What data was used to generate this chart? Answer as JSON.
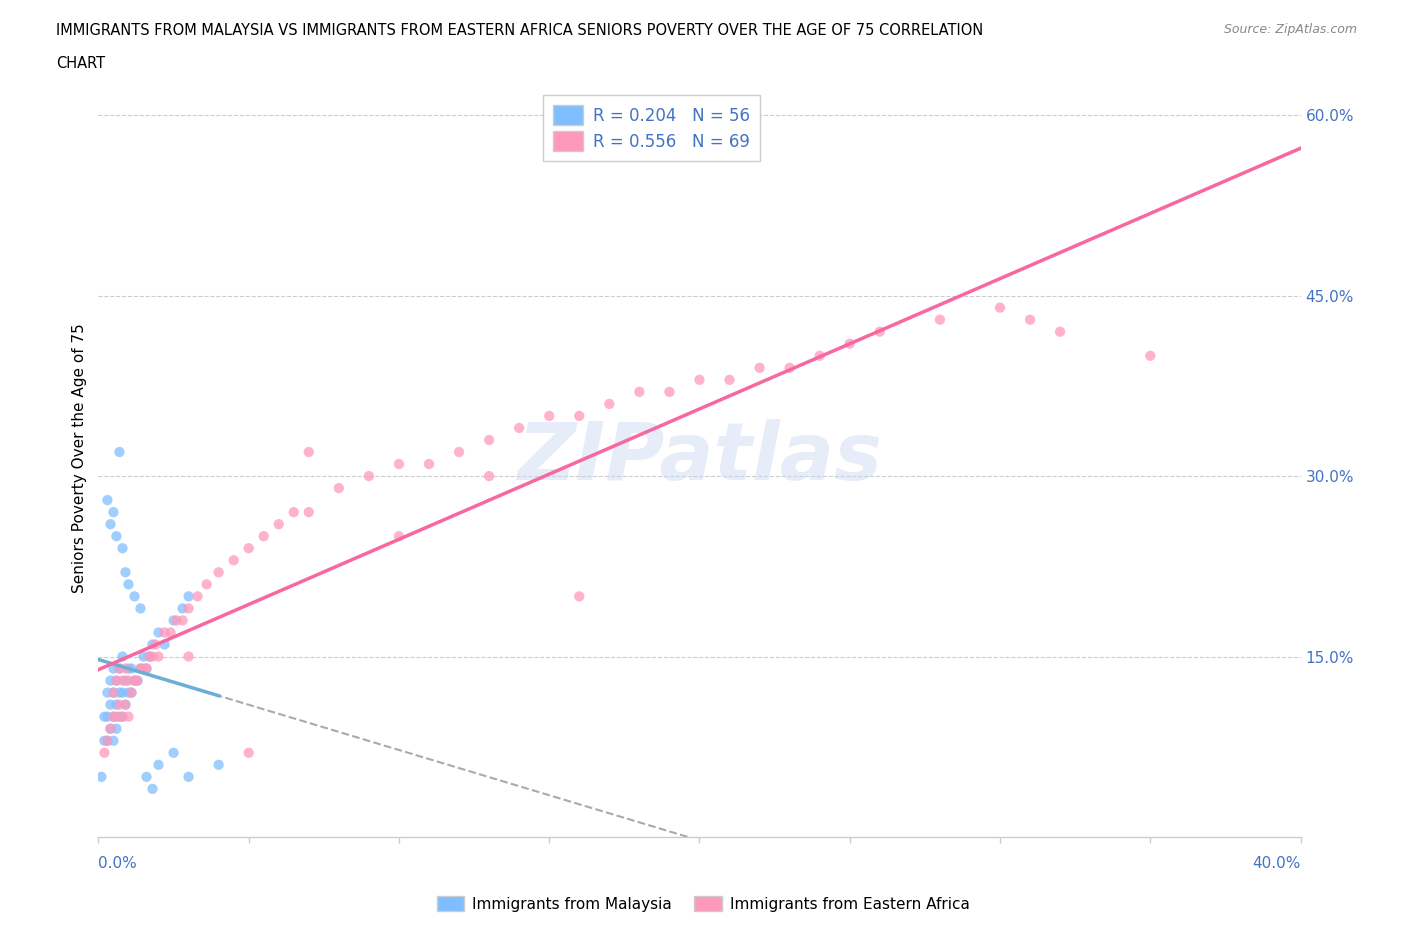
{
  "title_line1": "IMMIGRANTS FROM MALAYSIA VS IMMIGRANTS FROM EASTERN AFRICA SENIORS POVERTY OVER THE AGE OF 75 CORRELATION",
  "title_line2": "CHART",
  "source": "Source: ZipAtlas.com",
  "ylabel_label": "Seniors Poverty Over the Age of 75",
  "xlim": [
    0.0,
    0.4
  ],
  "ylim": [
    0.0,
    0.63
  ],
  "yticks": [
    0.15,
    0.3,
    0.45,
    0.6
  ],
  "ytick_labels": [
    "15.0%",
    "30.0%",
    "45.0%",
    "60.0%"
  ],
  "legend1_label": "R = 0.204   N = 56",
  "legend2_label": "R = 0.556   N = 69",
  "color_malaysia": "#80bfff",
  "color_eastern_africa": "#ff99bb",
  "color_line_malaysia": "#6baed6",
  "color_line_eastern_africa": "#f768a1",
  "color_axis_labels": "#4472c4",
  "watermark": "ZIPatlas",
  "malaysia_x": [
    0.001,
    0.002,
    0.002,
    0.003,
    0.003,
    0.003,
    0.004,
    0.004,
    0.004,
    0.005,
    0.005,
    0.005,
    0.005,
    0.006,
    0.006,
    0.006,
    0.007,
    0.007,
    0.007,
    0.008,
    0.008,
    0.008,
    0.009,
    0.009,
    0.01,
    0.01,
    0.011,
    0.011,
    0.012,
    0.013,
    0.014,
    0.015,
    0.016,
    0.017,
    0.018,
    0.02,
    0.022,
    0.025,
    0.028,
    0.03,
    0.003,
    0.004,
    0.005,
    0.006,
    0.007,
    0.008,
    0.009,
    0.01,
    0.012,
    0.014,
    0.016,
    0.018,
    0.02,
    0.025,
    0.03,
    0.04
  ],
  "malaysia_y": [
    0.05,
    0.08,
    0.1,
    0.08,
    0.1,
    0.12,
    0.09,
    0.11,
    0.13,
    0.08,
    0.1,
    0.12,
    0.14,
    0.09,
    0.11,
    0.13,
    0.1,
    0.12,
    0.14,
    0.1,
    0.12,
    0.15,
    0.11,
    0.13,
    0.12,
    0.14,
    0.12,
    0.14,
    0.13,
    0.13,
    0.14,
    0.15,
    0.14,
    0.15,
    0.16,
    0.17,
    0.16,
    0.18,
    0.19,
    0.2,
    0.28,
    0.26,
    0.27,
    0.25,
    0.32,
    0.24,
    0.22,
    0.21,
    0.2,
    0.19,
    0.05,
    0.04,
    0.06,
    0.07,
    0.05,
    0.06
  ],
  "eastern_africa_x": [
    0.002,
    0.003,
    0.004,
    0.005,
    0.005,
    0.006,
    0.006,
    0.007,
    0.007,
    0.008,
    0.008,
    0.009,
    0.009,
    0.01,
    0.01,
    0.011,
    0.012,
    0.013,
    0.014,
    0.015,
    0.016,
    0.017,
    0.018,
    0.019,
    0.02,
    0.022,
    0.024,
    0.026,
    0.028,
    0.03,
    0.033,
    0.036,
    0.04,
    0.045,
    0.05,
    0.055,
    0.06,
    0.065,
    0.07,
    0.08,
    0.09,
    0.1,
    0.11,
    0.12,
    0.13,
    0.14,
    0.15,
    0.16,
    0.17,
    0.18,
    0.19,
    0.2,
    0.21,
    0.22,
    0.23,
    0.24,
    0.25,
    0.26,
    0.28,
    0.3,
    0.31,
    0.32,
    0.35,
    0.03,
    0.05,
    0.07,
    0.1,
    0.13,
    0.16
  ],
  "eastern_africa_y": [
    0.07,
    0.08,
    0.09,
    0.1,
    0.12,
    0.1,
    0.13,
    0.11,
    0.14,
    0.1,
    0.13,
    0.11,
    0.14,
    0.1,
    0.13,
    0.12,
    0.13,
    0.13,
    0.14,
    0.14,
    0.14,
    0.15,
    0.15,
    0.16,
    0.15,
    0.17,
    0.17,
    0.18,
    0.18,
    0.19,
    0.2,
    0.21,
    0.22,
    0.23,
    0.24,
    0.25,
    0.26,
    0.27,
    0.27,
    0.29,
    0.3,
    0.31,
    0.31,
    0.32,
    0.33,
    0.34,
    0.35,
    0.35,
    0.36,
    0.37,
    0.37,
    0.38,
    0.38,
    0.39,
    0.39,
    0.4,
    0.41,
    0.42,
    0.43,
    0.44,
    0.43,
    0.42,
    0.4,
    0.15,
    0.07,
    0.32,
    0.25,
    0.3,
    0.2
  ]
}
